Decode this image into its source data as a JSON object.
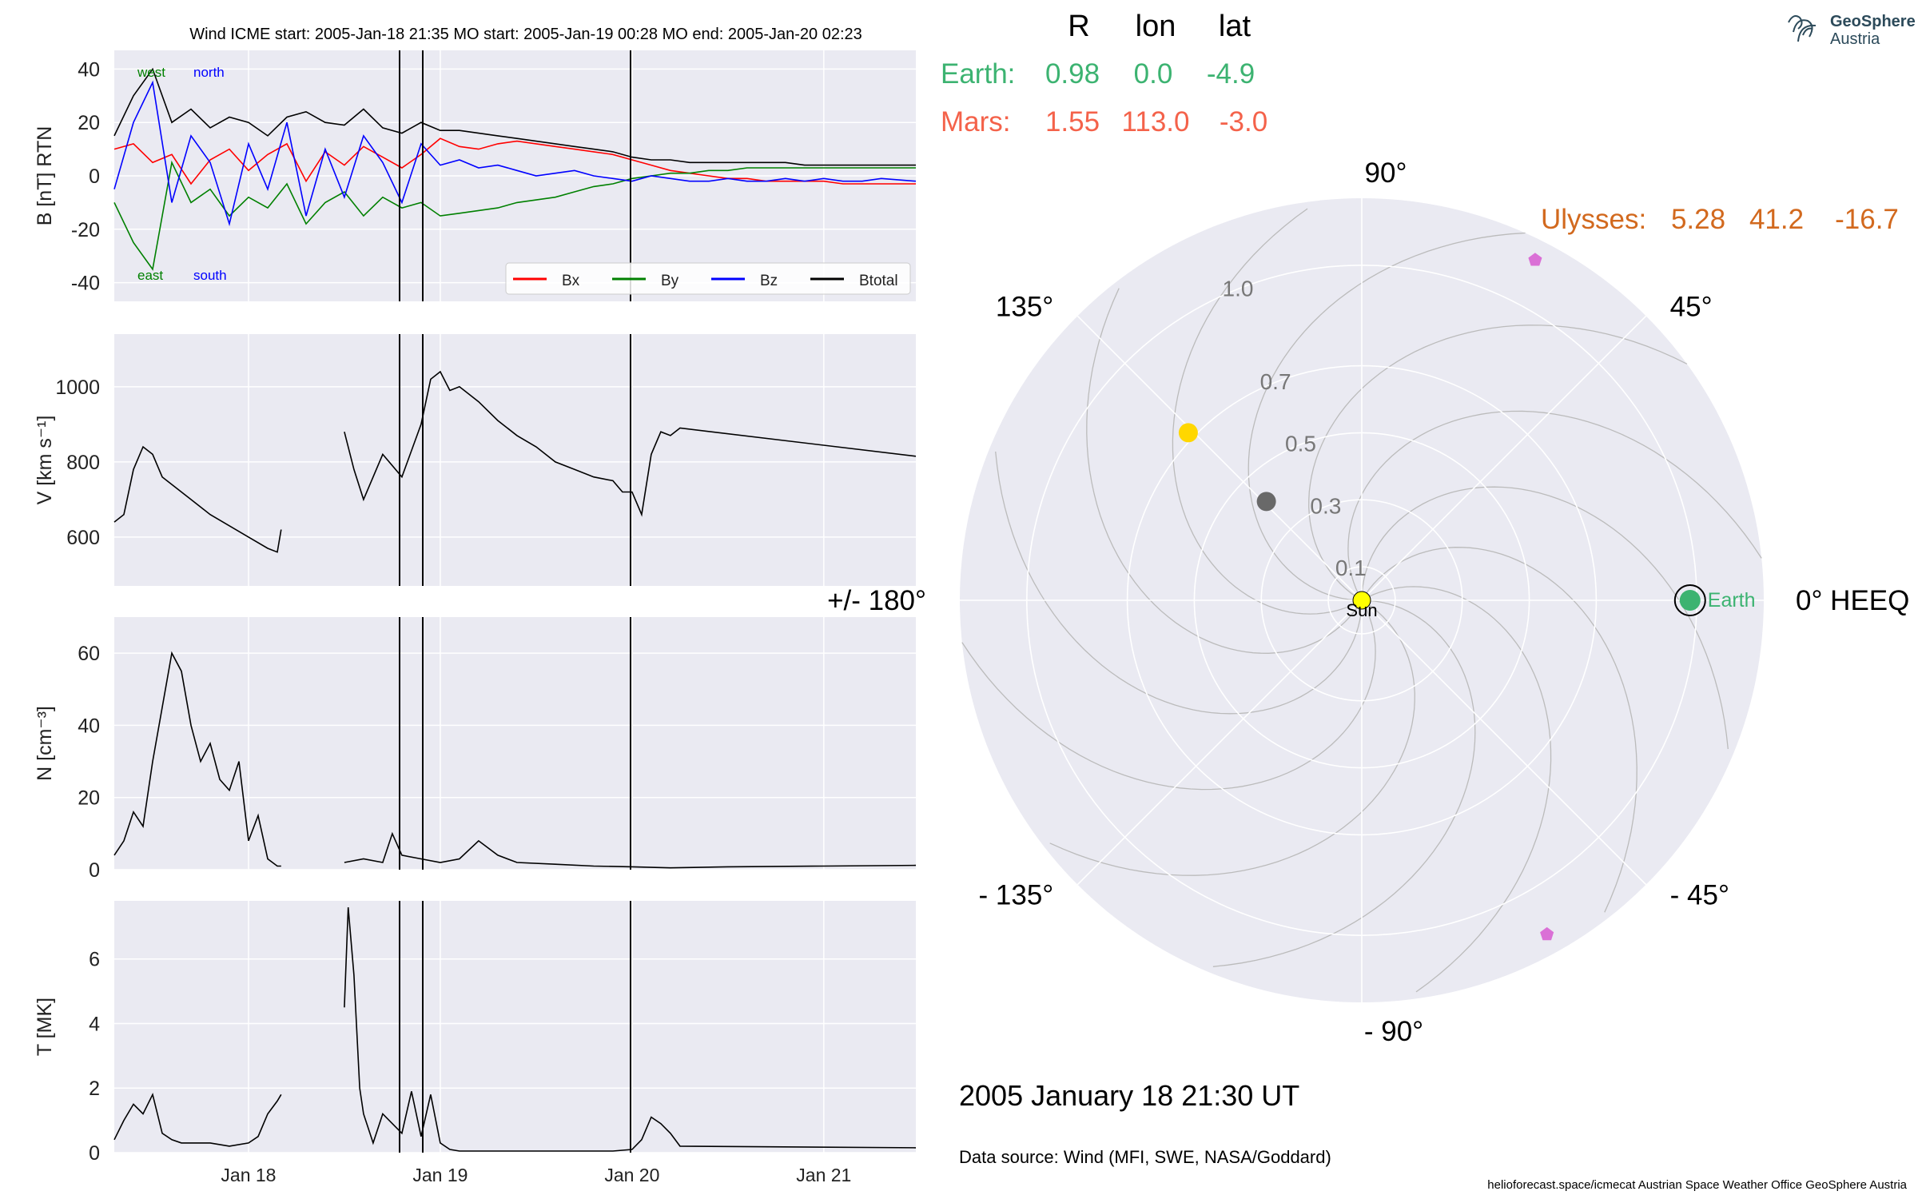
{
  "header": {
    "title": "Wind    ICME start: 2005-Jan-18 21:35   MO start: 2005-Jan-19 00:28   MO end: 2005-Jan-20 02:23"
  },
  "colors": {
    "panel_bg": "#EAEAF2",
    "grid": "#ffffff",
    "bx": "#ff0000",
    "by": "#008000",
    "bz": "#0000ff",
    "btotal": "#000000",
    "earth": "#3cb371",
    "mars": "#f4624a",
    "ulysses": "#d2691e",
    "sun": "#ffff00",
    "venus": "#ffd700",
    "mercury": "#696969",
    "stereo_markers": "#da70d6"
  },
  "chart_data": [
    {
      "type": "line",
      "panel": "magnetic_field",
      "title": "Wind    ICME start: 2005-Jan-18 21:35   MO start: 2005-Jan-19 00:28   MO end: 2005-Jan-20 02:23",
      "xlabel": "",
      "ylabel": "B [nT] RTN",
      "x_unit": "days since 2005-Jan-17 00:00",
      "xlim": [
        0.3,
        4.48
      ],
      "ylim": [
        -47,
        47
      ],
      "yticks": [
        -40,
        -20,
        0,
        20,
        40
      ],
      "xtick_labels": [
        "Jan 18",
        "Jan 19",
        "Jan 20",
        "Jan 21"
      ],
      "xtick_values": [
        1,
        2,
        3,
        4
      ],
      "annotations": [
        "west",
        "north",
        "east",
        "south"
      ],
      "legend": {
        "position": "lower-right",
        "entries": [
          "Bx",
          "By",
          "Bz",
          "Btotal"
        ]
      },
      "vertical_lines": [
        "2005-Jan-18 21:35",
        "2005-Jan-19 00:28",
        "2005-Jan-20 02:23"
      ],
      "series": [
        {
          "name": "Bx",
          "x": [
            0.3,
            0.4,
            0.5,
            0.6,
            0.7,
            0.8,
            0.9,
            1.0,
            1.1,
            1.2,
            1.3,
            1.4,
            1.5,
            1.6,
            1.7,
            1.8,
            1.9,
            2.0,
            2.1,
            2.2,
            2.3,
            2.4,
            2.5,
            2.6,
            2.7,
            2.8,
            2.9,
            3.0,
            3.1,
            3.2,
            3.3,
            3.4,
            3.5,
            3.6,
            3.7,
            3.8,
            3.9,
            4.0,
            4.1,
            4.2,
            4.3,
            4.48
          ],
          "values": [
            10,
            12,
            5,
            8,
            -3,
            6,
            10,
            2,
            8,
            12,
            -2,
            9,
            4,
            11,
            7,
            3,
            8,
            14,
            11,
            10,
            12,
            13,
            12,
            11,
            10,
            9,
            8,
            6,
            4,
            2,
            1,
            0,
            -1,
            -1,
            -2,
            -2,
            -2,
            -2,
            -3,
            -3,
            -3,
            -3
          ]
        },
        {
          "name": "By",
          "x": [
            0.3,
            0.4,
            0.5,
            0.6,
            0.7,
            0.8,
            0.9,
            1.0,
            1.1,
            1.2,
            1.3,
            1.4,
            1.5,
            1.6,
            1.7,
            1.8,
            1.9,
            2.0,
            2.1,
            2.2,
            2.3,
            2.4,
            2.5,
            2.6,
            2.7,
            2.8,
            2.9,
            3.0,
            3.1,
            3.2,
            3.3,
            3.4,
            3.5,
            3.6,
            3.7,
            3.8,
            3.9,
            4.0,
            4.1,
            4.2,
            4.3,
            4.48
          ],
          "values": [
            -10,
            -25,
            -35,
            5,
            -10,
            -5,
            -15,
            -8,
            -12,
            -3,
            -18,
            -10,
            -6,
            -15,
            -8,
            -12,
            -10,
            -15,
            -14,
            -13,
            -12,
            -10,
            -9,
            -8,
            -6,
            -4,
            -3,
            -1,
            0,
            1,
            1,
            2,
            2,
            3,
            3,
            3,
            3,
            3,
            3,
            3,
            3,
            3
          ]
        },
        {
          "name": "Bz",
          "x": [
            0.3,
            0.4,
            0.5,
            0.6,
            0.7,
            0.8,
            0.9,
            1.0,
            1.1,
            1.2,
            1.3,
            1.4,
            1.5,
            1.6,
            1.7,
            1.8,
            1.9,
            2.0,
            2.1,
            2.2,
            2.3,
            2.4,
            2.5,
            2.6,
            2.7,
            2.8,
            2.9,
            3.0,
            3.1,
            3.2,
            3.3,
            3.4,
            3.5,
            3.6,
            3.7,
            3.8,
            3.9,
            4.0,
            4.1,
            4.2,
            4.3,
            4.48
          ],
          "values": [
            -5,
            20,
            35,
            -10,
            15,
            5,
            -18,
            12,
            -5,
            20,
            -15,
            10,
            -8,
            15,
            5,
            -10,
            12,
            4,
            6,
            3,
            4,
            2,
            0,
            1,
            2,
            0,
            -1,
            -2,
            0,
            -1,
            -2,
            -2,
            -1,
            -2,
            -2,
            -1,
            -2,
            -1,
            -2,
            -2,
            -1,
            -2
          ]
        },
        {
          "name": "Btotal",
          "x": [
            0.3,
            0.4,
            0.5,
            0.6,
            0.7,
            0.8,
            0.9,
            1.0,
            1.1,
            1.2,
            1.3,
            1.4,
            1.5,
            1.6,
            1.7,
            1.8,
            1.9,
            2.0,
            2.1,
            2.2,
            2.3,
            2.4,
            2.5,
            2.6,
            2.7,
            2.8,
            2.9,
            3.0,
            3.1,
            3.2,
            3.3,
            3.4,
            3.5,
            3.6,
            3.7,
            3.8,
            3.9,
            4.0,
            4.1,
            4.2,
            4.3,
            4.48
          ],
          "values": [
            15,
            30,
            40,
            20,
            25,
            18,
            22,
            20,
            15,
            22,
            24,
            20,
            19,
            25,
            18,
            16,
            20,
            17,
            17,
            16,
            15,
            14,
            13,
            12,
            11,
            10,
            9,
            7,
            6,
            6,
            5,
            5,
            5,
            5,
            5,
            5,
            4,
            4,
            4,
            4,
            4,
            4
          ]
        }
      ]
    },
    {
      "type": "line",
      "panel": "speed",
      "ylabel": "V [km s⁻¹]",
      "xlim": [
        0.3,
        4.48
      ],
      "ylim": [
        470,
        1140
      ],
      "yticks": [
        600,
        800,
        1000
      ],
      "xtick_values": [
        1,
        2,
        3,
        4
      ],
      "series": [
        {
          "name": "V",
          "segments": [
            {
              "x": [
                0.3,
                0.35,
                0.4,
                0.45,
                0.5,
                0.55,
                0.6,
                0.7,
                0.8,
                0.9,
                1.0,
                1.1,
                1.15,
                1.17
              ],
              "values": [
                640,
                660,
                780,
                840,
                820,
                760,
                740,
                700,
                660,
                630,
                600,
                570,
                560,
                620
              ]
            },
            {
              "x": [
                1.5,
                1.55,
                1.6,
                1.7,
                1.8,
                1.9,
                1.95,
                2.0,
                2.05,
                2.1,
                2.2,
                2.3,
                2.4,
                2.5,
                2.6,
                2.7,
                2.8,
                2.9,
                2.95,
                3.0,
                3.05,
                3.1,
                3.15,
                3.2,
                3.25,
                4.48
              ],
              "values": [
                880,
                780,
                700,
                820,
                760,
                900,
                1020,
                1040,
                990,
                1000,
                960,
                910,
                870,
                840,
                800,
                780,
                760,
                750,
                720,
                720,
                660,
                820,
                880,
                870,
                890,
                815
              ]
            }
          ]
        }
      ]
    },
    {
      "type": "line",
      "panel": "density",
      "ylabel": "N [cm⁻³]",
      "xlim": [
        0.3,
        4.48
      ],
      "ylim": [
        0,
        70
      ],
      "yticks": [
        0,
        20,
        40,
        60
      ],
      "xtick_values": [
        1,
        2,
        3,
        4
      ],
      "series": [
        {
          "name": "N",
          "segments": [
            {
              "x": [
                0.3,
                0.35,
                0.4,
                0.45,
                0.5,
                0.55,
                0.6,
                0.65,
                0.7,
                0.75,
                0.8,
                0.85,
                0.9,
                0.95,
                1.0,
                1.05,
                1.1,
                1.15,
                1.17
              ],
              "values": [
                4,
                8,
                16,
                12,
                30,
                45,
                60,
                55,
                40,
                30,
                35,
                25,
                22,
                30,
                8,
                15,
                3,
                1,
                1
              ]
            },
            {
              "x": [
                1.5,
                1.6,
                1.7,
                1.75,
                1.8,
                1.9,
                2.0,
                2.1,
                2.2,
                2.3,
                2.4,
                2.6,
                2.8,
                3.0,
                3.2,
                3.5,
                4.0,
                4.48
              ],
              "values": [
                2,
                3,
                2,
                10,
                4,
                3,
                2,
                3,
                8,
                4,
                2,
                1.5,
                1,
                0.8,
                0.5,
                0.8,
                1,
                1.2
              ]
            }
          ]
        }
      ]
    },
    {
      "type": "line",
      "panel": "temperature",
      "ylabel": "T [MK]",
      "xlim": [
        0.3,
        4.48
      ],
      "ylim": [
        0,
        7.8
      ],
      "yticks": [
        0,
        2,
        4,
        6
      ],
      "xtick_labels": [
        "Jan 18",
        "Jan 19",
        "Jan 20",
        "Jan 21"
      ],
      "xtick_values": [
        1,
        2,
        3,
        4
      ],
      "series": [
        {
          "name": "T",
          "segments": [
            {
              "x": [
                0.3,
                0.35,
                0.4,
                0.45,
                0.5,
                0.55,
                0.6,
                0.65,
                0.7,
                0.8,
                0.9,
                1.0,
                1.05,
                1.1,
                1.15,
                1.17
              ],
              "values": [
                0.4,
                1.0,
                1.5,
                1.2,
                1.8,
                0.6,
                0.4,
                0.3,
                0.3,
                0.3,
                0.2,
                0.3,
                0.5,
                1.2,
                1.6,
                1.8
              ]
            },
            {
              "x": [
                1.5,
                1.52,
                1.55,
                1.58,
                1.6,
                1.65,
                1.7,
                1.8,
                1.85,
                1.9,
                1.95,
                2.0,
                2.05,
                2.1,
                2.3,
                2.6,
                2.9,
                3.0,
                3.05,
                3.1,
                3.15,
                3.2,
                3.25,
                4.48
              ],
              "values": [
                4.5,
                7.6,
                5.5,
                2.0,
                1.2,
                0.3,
                1.2,
                0.6,
                1.9,
                0.5,
                1.8,
                0.3,
                0.1,
                0.05,
                0.05,
                0.05,
                0.05,
                0.1,
                0.4,
                1.1,
                0.9,
                0.6,
                0.2,
                0.15
              ]
            }
          ]
        }
      ]
    },
    {
      "type": "scatter",
      "panel": "polar_orbit",
      "projection": "polar",
      "r_ticks": [
        0.1,
        0.3,
        0.5,
        0.7,
        1.0
      ],
      "r_tick_labels": [
        "0.1",
        "0.3",
        "0.5",
        "0.7",
        "1.0"
      ],
      "rlim": [
        0,
        1.2
      ],
      "angle_labels": [
        "0° HEEQ",
        "45°",
        "90°",
        "135°",
        "+/- 180°",
        "- 135°",
        "- 90°",
        "- 45°"
      ],
      "angle_values": [
        0,
        45,
        90,
        135,
        180,
        225,
        270,
        315
      ],
      "bodies": [
        {
          "name": "Sun",
          "r": 0.0,
          "lon": 0,
          "color": "#ffff00",
          "label": "Sun"
        },
        {
          "name": "Earth",
          "r": 0.98,
          "lon": 0.0,
          "color": "#3cb371",
          "label": "Earth"
        },
        {
          "name": "Venus",
          "r": 0.72,
          "lon": 136,
          "color": "#ffd700",
          "label": ""
        },
        {
          "name": "Mercury",
          "r": 0.41,
          "lon": 134,
          "color": "#696969",
          "label": ""
        },
        {
          "name": "STEREO-A marker",
          "r": 1.14,
          "lon": 63,
          "color": "#da70d6",
          "label": ""
        },
        {
          "name": "STEREO-B marker",
          "r": 1.14,
          "lon": -61,
          "color": "#da70d6",
          "label": ""
        }
      ],
      "timestamp": "2005 January 18  21:30 UT"
    }
  ],
  "position_table": {
    "headers": [
      "R",
      "lon",
      "lat"
    ],
    "rows": [
      {
        "name": "Earth:",
        "r": "0.98",
        "lon": "0.0",
        "lat": "-4.9"
      },
      {
        "name": "Mars:",
        "r": "1.55",
        "lon": "113.0",
        "lat": "-3.0"
      },
      {
        "name": "Ulysses:",
        "r": "5.28",
        "lon": "41.2",
        "lat": "-16.7"
      }
    ]
  },
  "footer": {
    "timestamp": "2005 January 18  21:30 UT",
    "data_source": "Data source: Wind (MFI, SWE, NASA/Goddard)",
    "credits": "helioforecast.space/icmecat   Austrian Space Weather Office   GeoSphere Austria"
  },
  "logo": {
    "line1": "GeoSphere",
    "line2": "Austria"
  }
}
